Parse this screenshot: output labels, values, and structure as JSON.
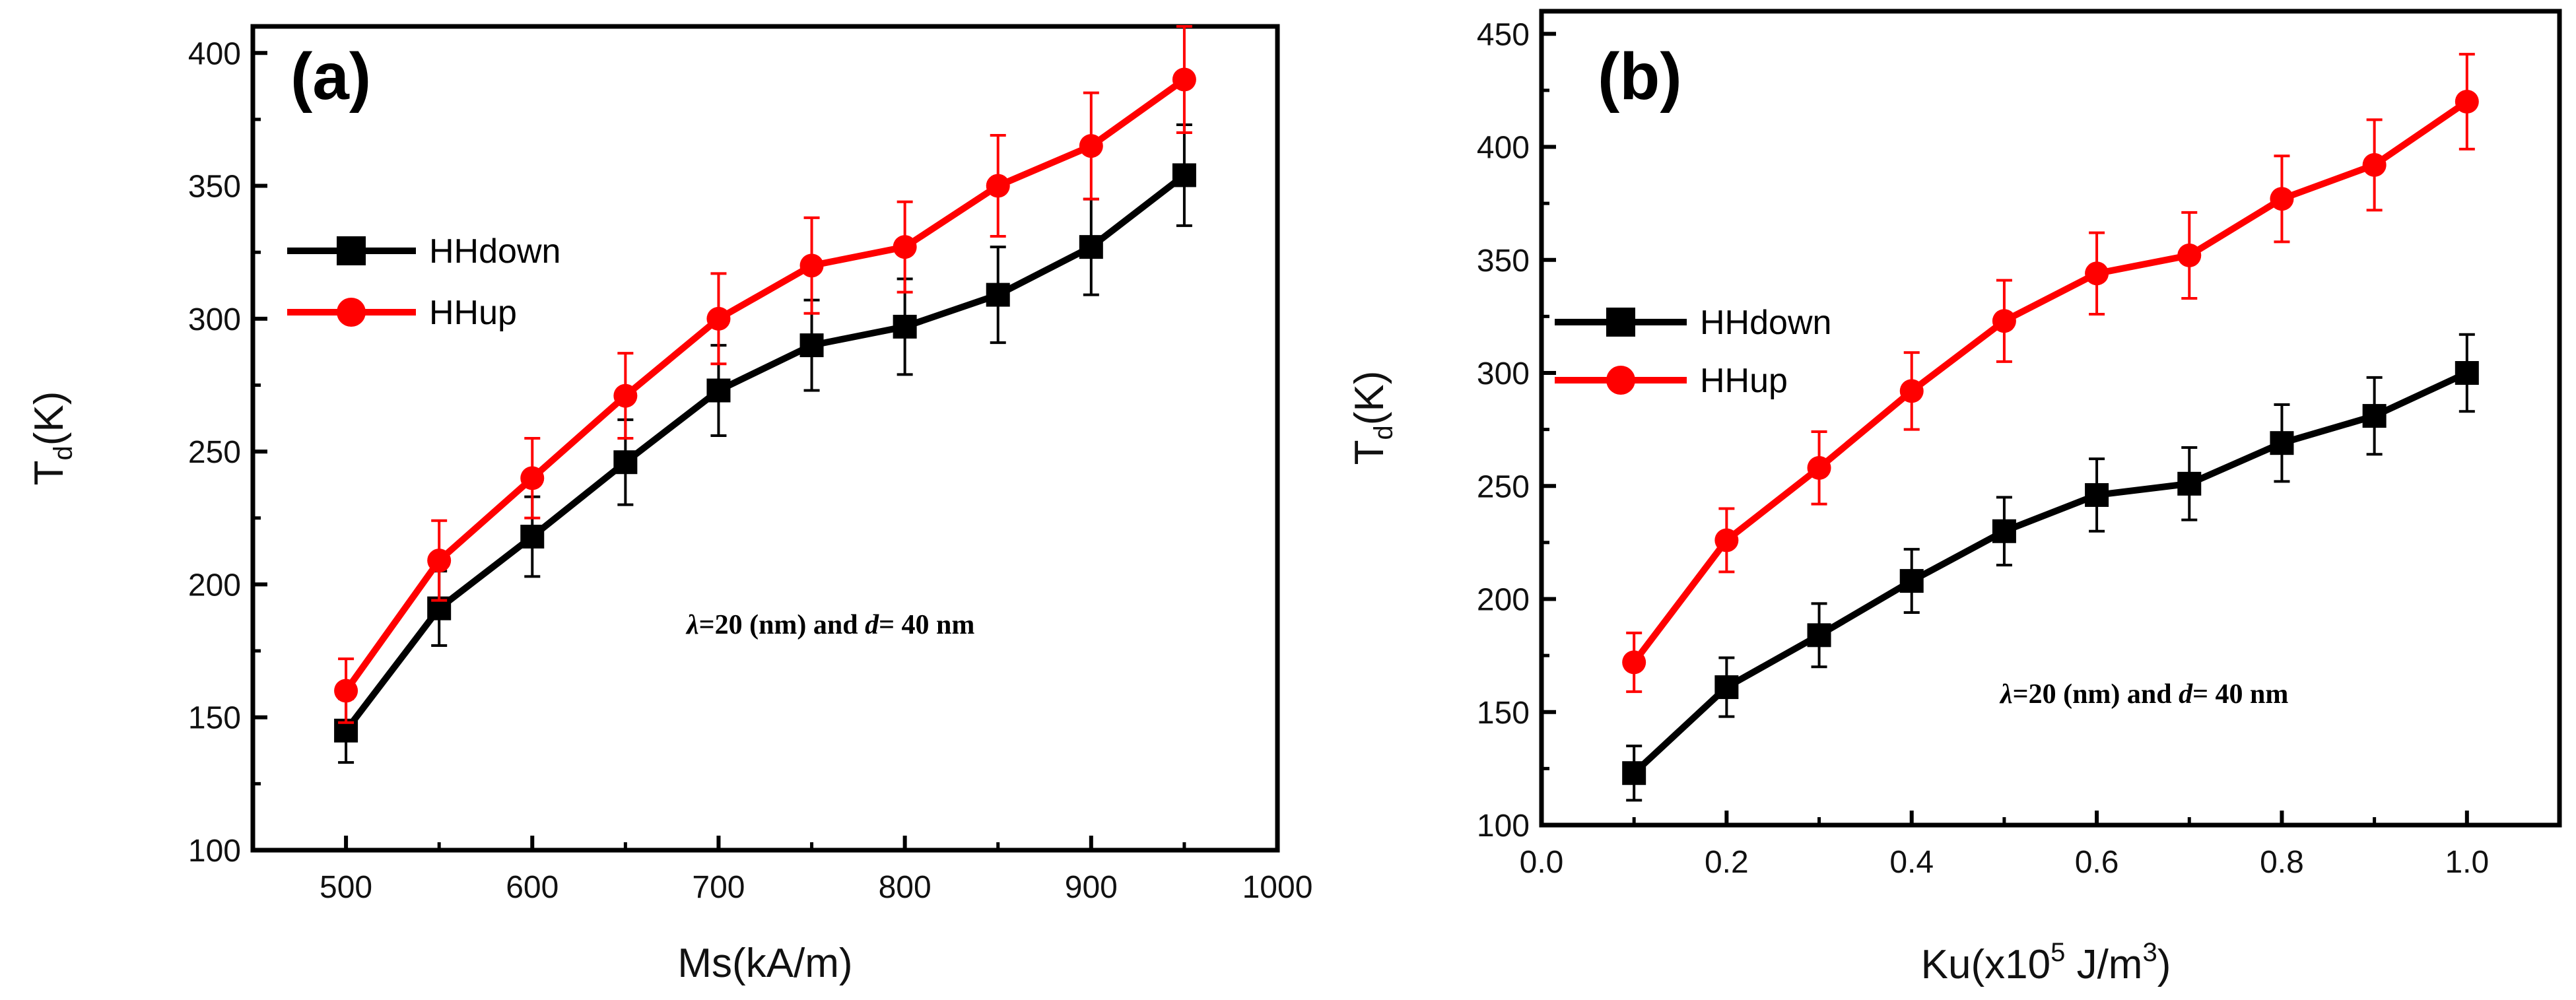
{
  "chart_data": [
    {
      "type": "line",
      "panel_label": "(a)",
      "xlabel": "Ms(kA/m)",
      "ylabel_main": "T",
      "ylabel_sub": "d",
      "ylabel_tail": "(K)",
      "xlim": [
        450,
        1000
      ],
      "ylim": [
        100,
        410
      ],
      "xticks": [
        500,
        600,
        700,
        800,
        900,
        1000
      ],
      "yticks": [
        100,
        150,
        200,
        250,
        300,
        350,
        400
      ],
      "annotation": {
        "lambda": "λ",
        "eq": "=20 (nm) and ",
        "d": "d",
        "rest": "= 40 nm"
      },
      "x": [
        500,
        550,
        600,
        650,
        700,
        750,
        800,
        850,
        900,
        950
      ],
      "series": [
        {
          "name": "HHdown",
          "color": "#000000",
          "marker": "square",
          "values": [
            145,
            191,
            218,
            246,
            273,
            290,
            297,
            309,
            327,
            354
          ],
          "errors": [
            12,
            14,
            15,
            16,
            17,
            17,
            18,
            18,
            18,
            19
          ]
        },
        {
          "name": "HHup",
          "color": "#ff0000",
          "marker": "circle",
          "values": [
            160,
            209,
            240,
            271,
            300,
            320,
            327,
            350,
            365,
            390
          ],
          "errors": [
            12,
            15,
            15,
            16,
            17,
            18,
            17,
            19,
            20,
            20
          ]
        }
      ],
      "legend_position": "upper-left"
    },
    {
      "type": "line",
      "panel_label": "(b)",
      "xlabel_pre": "Ku(x10",
      "xlabel_exp": "5",
      "xlabel_mid": " J/m",
      "xlabel_exp2": "3",
      "xlabel_post": ")",
      "ylabel_main": "T",
      "ylabel_sub": "d",
      "ylabel_tail": "(K)",
      "xlim": [
        0.0,
        1.1
      ],
      "ylim": [
        100,
        460
      ],
      "xticks": [
        "0.0",
        "0.2",
        "0.4",
        "0.6",
        "0.8",
        "1.0"
      ],
      "yticks": [
        100,
        150,
        200,
        250,
        300,
        350,
        400,
        450
      ],
      "annotation": {
        "lambda": "λ",
        "eq": "=20 (nm) and ",
        "d": "d",
        "rest": "= 40 nm"
      },
      "x": [
        0.1,
        0.2,
        0.3,
        0.4,
        0.5,
        0.6,
        0.7,
        0.8,
        0.9,
        1.0
      ],
      "series": [
        {
          "name": "HHdown",
          "color": "#000000",
          "marker": "square",
          "values": [
            123,
            161,
            184,
            208,
            230,
            246,
            251,
            269,
            281,
            300
          ],
          "errors": [
            12,
            13,
            14,
            14,
            15,
            16,
            16,
            17,
            17,
            17
          ]
        },
        {
          "name": "HHup",
          "color": "#ff0000",
          "marker": "circle",
          "values": [
            172,
            226,
            258,
            292,
            323,
            344,
            352,
            377,
            392,
            420
          ],
          "errors": [
            13,
            14,
            16,
            17,
            18,
            18,
            19,
            19,
            20,
            21
          ]
        }
      ],
      "legend_position": "left"
    }
  ]
}
